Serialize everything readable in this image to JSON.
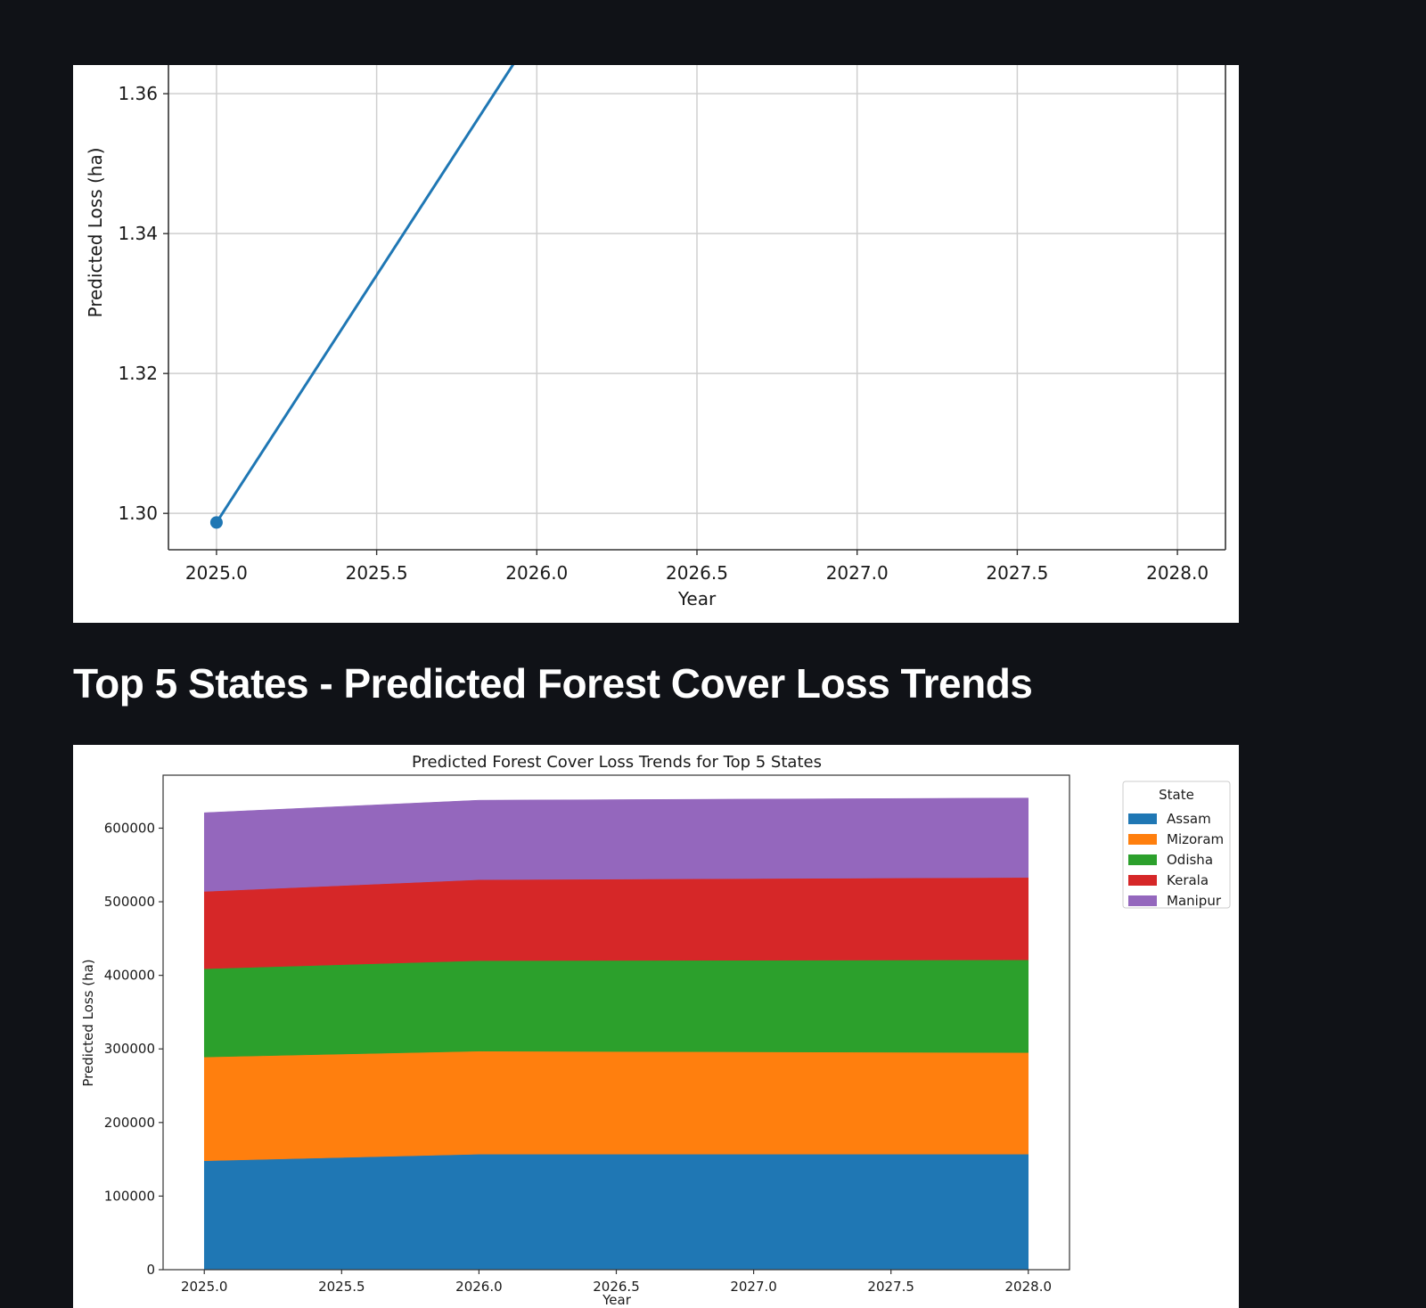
{
  "section": {
    "heading": "Top 5 States - Predicted Forest Cover Loss Trends"
  },
  "colors": {
    "page_background": "#101217",
    "line_series": "#1f77b4"
  },
  "chart_data": [
    {
      "type": "line",
      "title": "",
      "xlabel": "Year",
      "ylabel": "Predicted Loss (ha)",
      "xlim": [
        2024.85,
        2028.15
      ],
      "ylim": [
        1.2948,
        1.3641
      ],
      "x_ticks": [
        2025.0,
        2025.5,
        2026.0,
        2026.5,
        2027.0,
        2027.5,
        2028.0
      ],
      "x_tick_labels": [
        "2025.0",
        "2025.5",
        "2026.0",
        "2026.5",
        "2027.0",
        "2027.5",
        "2028.0"
      ],
      "y_ticks": [
        1.3,
        1.32,
        1.34,
        1.36
      ],
      "y_tick_labels": [
        "1.30",
        "1.32",
        "1.34",
        "1.36"
      ],
      "grid": true,
      "series": [
        {
          "x": [
            2025.0,
            2026.0
          ],
          "values": [
            1.2987,
            1.3694
          ],
          "color": "#1f77b4",
          "marker": "circle"
        }
      ]
    },
    {
      "type": "area",
      "stacked": true,
      "title": "Predicted Forest Cover Loss Trends for Top 5 States",
      "xlabel": "Year",
      "ylabel": "Predicted Loss (ha)",
      "xlim": [
        2024.85,
        2028.15
      ],
      "ylim": [
        0,
        672000
      ],
      "x": [
        2025.0,
        2026.0,
        2028.0
      ],
      "x_ticks": [
        2025.0,
        2025.5,
        2026.0,
        2026.5,
        2027.0,
        2027.5,
        2028.0
      ],
      "x_tick_labels": [
        "2025.0",
        "2025.5",
        "2026.0",
        "2026.5",
        "2027.0",
        "2027.5",
        "2028.0"
      ],
      "y_ticks": [
        0,
        100000,
        200000,
        300000,
        400000,
        500000,
        600000
      ],
      "y_tick_labels": [
        "0",
        "100000",
        "200000",
        "300000",
        "400000",
        "500000",
        "600000"
      ],
      "grid": false,
      "legend": {
        "title": "State",
        "placement": "outside-top-right"
      },
      "series": [
        {
          "name": "Assam",
          "color": "#1f77b4",
          "values": [
            148000,
            157000,
            157000
          ]
        },
        {
          "name": "Mizoram",
          "color": "#ff7f0e",
          "values": [
            141000,
            140000,
            138000
          ]
        },
        {
          "name": "Odisha",
          "color": "#2ca02c",
          "values": [
            120000,
            123000,
            126000
          ]
        },
        {
          "name": "Kerala",
          "color": "#d62728",
          "values": [
            105000,
            110000,
            112000
          ]
        },
        {
          "name": "Manipur",
          "color": "#9467bd",
          "values": [
            107000,
            108000,
            108000
          ]
        }
      ]
    }
  ]
}
